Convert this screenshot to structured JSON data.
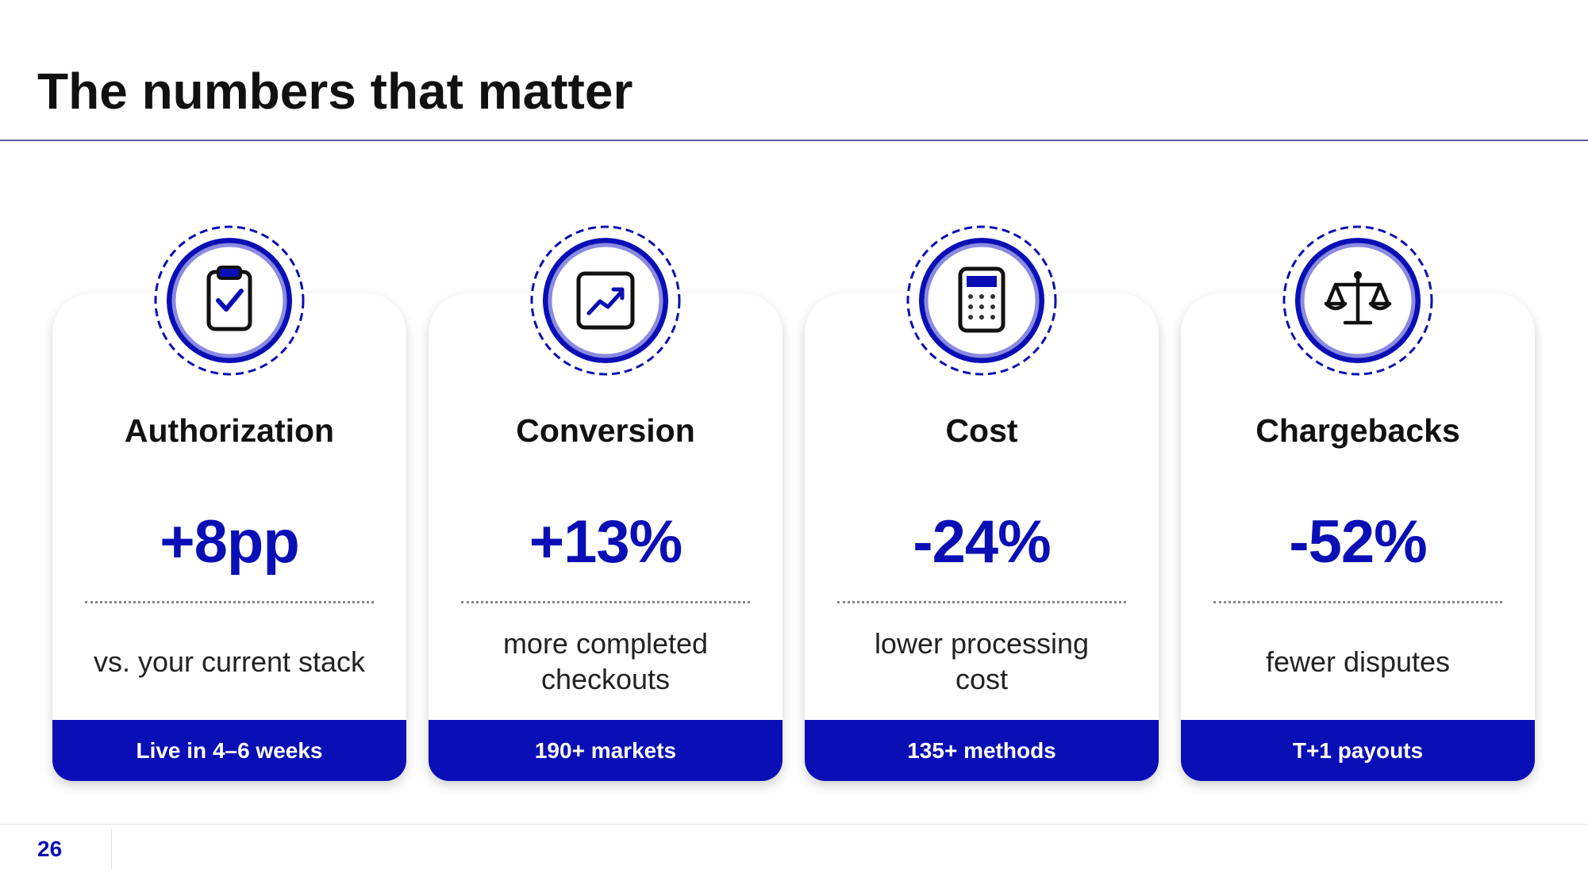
{
  "header": {
    "title": "The numbers that matter"
  },
  "cards": [
    {
      "label": "Authorization",
      "value": "+8pp",
      "description": "vs. your current stack",
      "footer": "Live in 4–6 weeks"
    },
    {
      "label": "Conversion",
      "value": "+13%",
      "description": "more completed checkouts",
      "footer": "190+ markets"
    },
    {
      "label": "Cost",
      "value": "-24%",
      "description": "lower processing cost",
      "footer": "135+ methods"
    },
    {
      "label": "Chargebacks",
      "value": "-52%",
      "description": "fewer disputes",
      "footer": "T+1 payouts"
    }
  ],
  "footer": {
    "page_number": "26"
  }
}
